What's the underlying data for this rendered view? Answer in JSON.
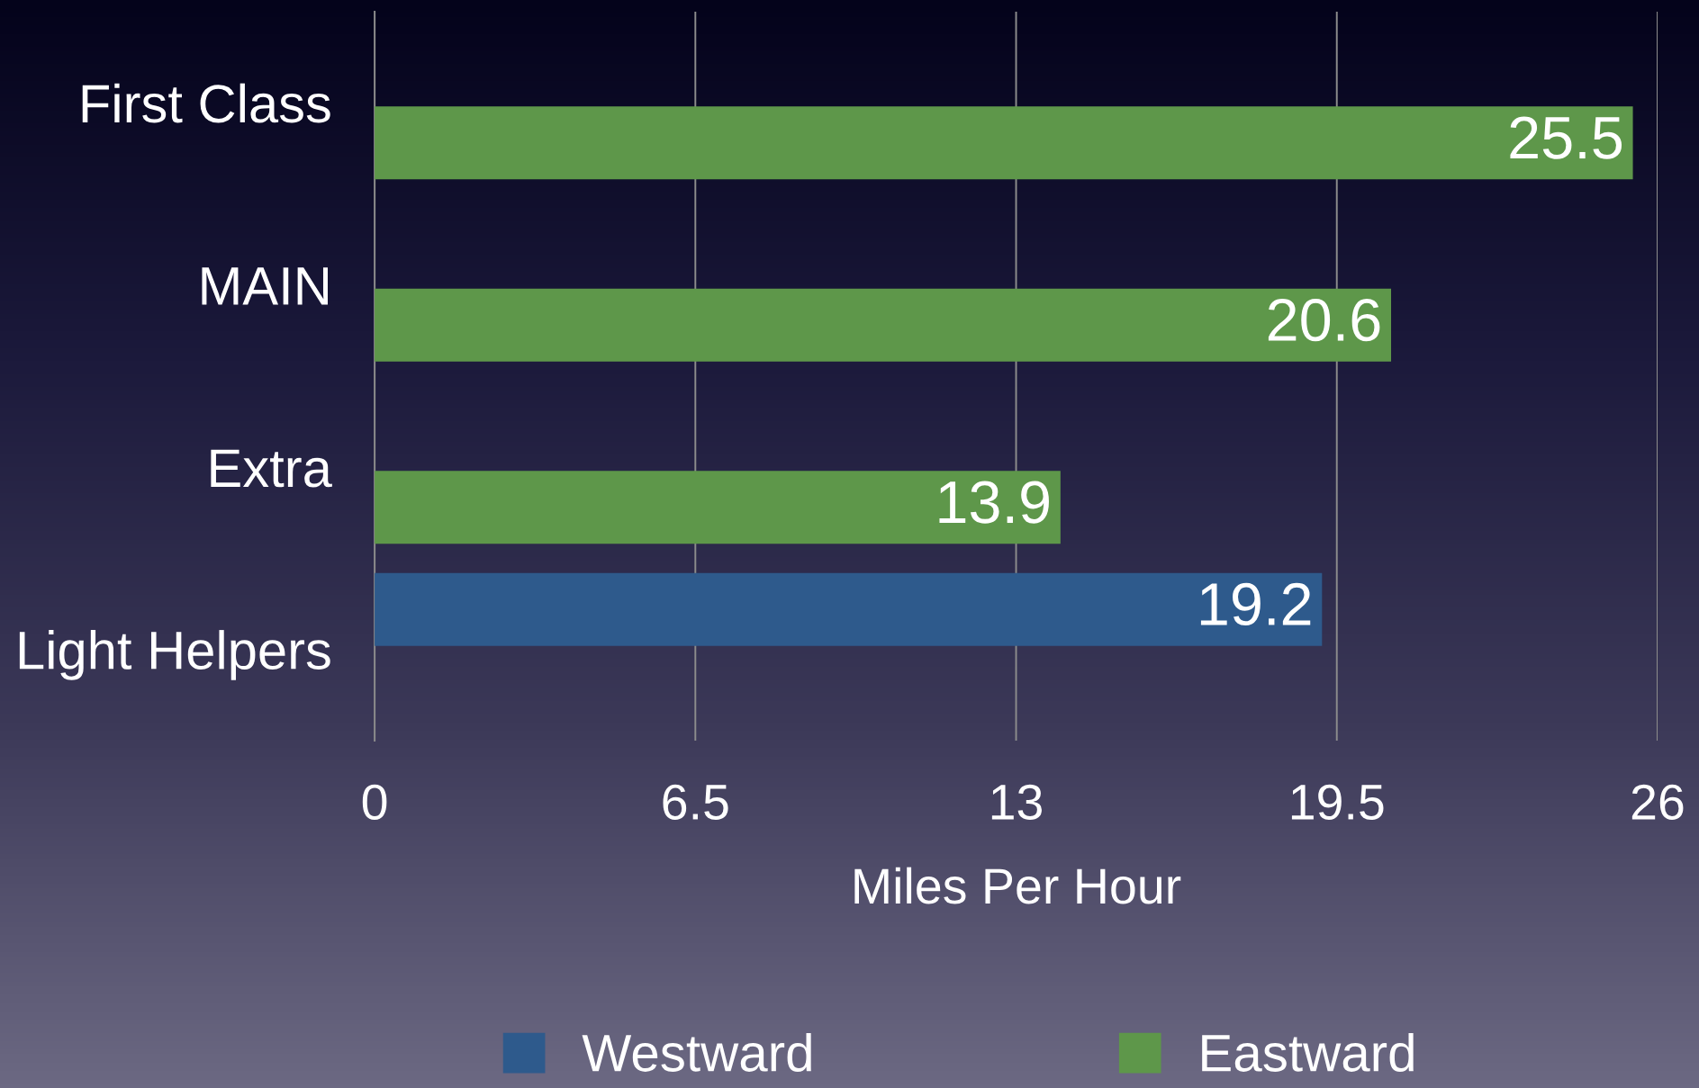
{
  "chart_data": {
    "type": "bar",
    "orientation": "horizontal",
    "categories": [
      "First Class",
      "MAIN",
      "Extra",
      "Light Helpers"
    ],
    "series": [
      {
        "name": "Westward",
        "color": "#2e5a8c",
        "values": [
          null,
          null,
          null,
          19.2
        ]
      },
      {
        "name": "Eastward",
        "color": "#5e974a",
        "values": [
          25.5,
          20.6,
          13.9,
          null
        ]
      }
    ],
    "xlabel": "Miles Per Hour",
    "xlim": [
      0,
      26
    ],
    "xticks": [
      0,
      6.5,
      13,
      19.5,
      26
    ],
    "grid": "x",
    "legend": "bottom",
    "data_labels": true
  }
}
